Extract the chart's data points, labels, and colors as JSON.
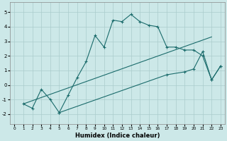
{
  "xlabel": "Humidex (Indice chaleur)",
  "bg_color": "#cce8e8",
  "grid_color": "#aacccc",
  "line_color": "#1a6b6b",
  "xlim": [
    -0.5,
    23.5
  ],
  "ylim": [
    -2.7,
    5.7
  ],
  "xticks": [
    0,
    1,
    2,
    3,
    4,
    5,
    6,
    7,
    8,
    9,
    10,
    11,
    12,
    13,
    14,
    15,
    16,
    17,
    18,
    19,
    20,
    21,
    22,
    23
  ],
  "yticks": [
    -2,
    -1,
    0,
    1,
    2,
    3,
    4,
    5
  ],
  "series": [
    {
      "x": [
        1,
        2,
        3,
        4,
        5,
        6,
        7,
        8,
        9,
        10,
        11,
        12,
        13,
        14,
        15,
        16,
        17,
        18,
        19,
        20,
        21,
        22,
        23
      ],
      "y": [
        -1.3,
        -1.6,
        -0.3,
        -1.0,
        -1.9,
        -0.7,
        0.5,
        1.6,
        3.4,
        2.6,
        4.45,
        4.35,
        4.85,
        4.35,
        4.1,
        4.0,
        2.6,
        2.6,
        2.4,
        2.4,
        2.0,
        0.35,
        1.3
      ]
    },
    {
      "x": [
        1,
        22
      ],
      "y": [
        -1.3,
        3.3
      ]
    },
    {
      "x": [
        5,
        17,
        19,
        20,
        21,
        22,
        23
      ],
      "y": [
        -1.9,
        0.7,
        0.9,
        1.1,
        2.3,
        0.35,
        1.3
      ]
    }
  ]
}
